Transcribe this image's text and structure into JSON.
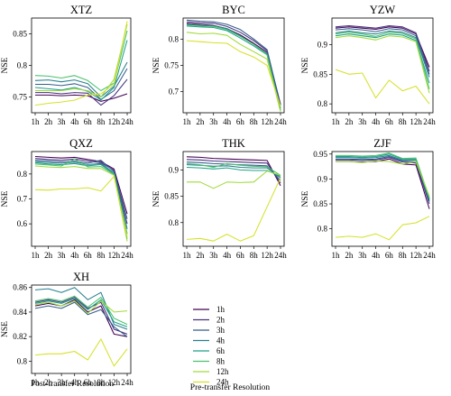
{
  "figure": {
    "xlabel": "Post-transfer Resolution",
    "ylabel": "NSE",
    "legend_title": "Pre-transfer Resolution"
  },
  "colors": {
    "1h": "#440154",
    "2h": "#46327e",
    "3h": "#365c8d",
    "4h": "#277f8e",
    "6h": "#1fa187",
    "8h": "#4ac16d",
    "12h": "#a0da39",
    "24h": "#d5e12a"
  },
  "chart_data": [
    {
      "type": "line",
      "title": "XTZ",
      "categories": [
        "1h",
        "2h",
        "3h",
        "4h",
        "6h",
        "8h",
        "12h",
        "24h"
      ],
      "ylim": [
        0.725,
        0.875
      ],
      "yticks": [
        0.75,
        0.8,
        0.85
      ],
      "series": [
        {
          "name": "1h",
          "values": [
            0.753,
            0.753,
            0.752,
            0.753,
            0.752,
            0.743,
            0.748,
            0.755
          ]
        },
        {
          "name": "2h",
          "values": [
            0.757,
            0.757,
            0.755,
            0.757,
            0.756,
            0.737,
            0.752,
            0.778
          ]
        },
        {
          "name": "3h",
          "values": [
            0.77,
            0.77,
            0.768,
            0.771,
            0.765,
            0.746,
            0.76,
            0.795
          ]
        },
        {
          "name": "4h",
          "values": [
            0.776,
            0.777,
            0.774,
            0.777,
            0.771,
            0.75,
            0.767,
            0.805
          ]
        },
        {
          "name": "6h",
          "values": [
            0.765,
            0.763,
            0.761,
            0.765,
            0.759,
            0.745,
            0.765,
            0.84
          ]
        },
        {
          "name": "8h",
          "values": [
            0.784,
            0.783,
            0.78,
            0.784,
            0.776,
            0.76,
            0.772,
            0.855
          ]
        },
        {
          "name": "12h",
          "values": [
            0.76,
            0.76,
            0.76,
            0.763,
            0.76,
            0.75,
            0.778,
            0.865
          ]
        },
        {
          "name": "24h",
          "values": [
            0.737,
            0.74,
            0.742,
            0.745,
            0.753,
            0.755,
            0.77,
            0.87
          ]
        }
      ]
    },
    {
      "type": "line",
      "title": "BYC",
      "categories": [
        "1h",
        "2h",
        "3h",
        "4h",
        "6h",
        "8h",
        "12h",
        "24h"
      ],
      "ylim": [
        0.66,
        0.84
      ],
      "yticks": [
        0.7,
        0.75,
        0.8
      ],
      "series": [
        {
          "name": "1h",
          "values": [
            0.83,
            0.828,
            0.826,
            0.82,
            0.808,
            0.792,
            0.775,
            0.676
          ]
        },
        {
          "name": "2h",
          "values": [
            0.833,
            0.831,
            0.83,
            0.824,
            0.813,
            0.797,
            0.778,
            0.676
          ]
        },
        {
          "name": "3h",
          "values": [
            0.836,
            0.834,
            0.833,
            0.828,
            0.818,
            0.8,
            0.78,
            0.673
          ]
        },
        {
          "name": "4h",
          "values": [
            0.828,
            0.826,
            0.825,
            0.82,
            0.806,
            0.79,
            0.772,
            0.668
          ]
        },
        {
          "name": "6h",
          "values": [
            0.825,
            0.823,
            0.822,
            0.816,
            0.802,
            0.787,
            0.77,
            0.665
          ]
        },
        {
          "name": "8h",
          "values": [
            0.827,
            0.825,
            0.824,
            0.818,
            0.805,
            0.79,
            0.77,
            0.664
          ]
        },
        {
          "name": "12h",
          "values": [
            0.813,
            0.81,
            0.811,
            0.807,
            0.79,
            0.776,
            0.762,
            0.662
          ]
        },
        {
          "name": "24h",
          "values": [
            0.797,
            0.795,
            0.793,
            0.792,
            0.776,
            0.766,
            0.75,
            0.672
          ]
        }
      ]
    },
    {
      "type": "line",
      "title": "YZW",
      "categories": [
        "1h",
        "2h",
        "3h",
        "4h",
        "6h",
        "8h",
        "12h",
        "24h"
      ],
      "ylim": [
        0.785,
        0.945
      ],
      "yticks": [
        0.8,
        0.85,
        0.9
      ],
      "series": [
        {
          "name": "1h",
          "values": [
            0.928,
            0.93,
            0.928,
            0.926,
            0.93,
            0.928,
            0.918,
            0.862
          ]
        },
        {
          "name": "2h",
          "values": [
            0.93,
            0.932,
            0.93,
            0.928,
            0.932,
            0.93,
            0.92,
            0.855
          ]
        },
        {
          "name": "3h",
          "values": [
            0.925,
            0.927,
            0.925,
            0.922,
            0.927,
            0.925,
            0.915,
            0.85
          ]
        },
        {
          "name": "4h",
          "values": [
            0.92,
            0.923,
            0.92,
            0.918,
            0.923,
            0.921,
            0.912,
            0.845
          ]
        },
        {
          "name": "6h",
          "values": [
            0.915,
            0.918,
            0.915,
            0.912,
            0.918,
            0.916,
            0.907,
            0.835
          ]
        },
        {
          "name": "8h",
          "values": [
            0.918,
            0.921,
            0.918,
            0.914,
            0.921,
            0.919,
            0.91,
            0.825
          ]
        },
        {
          "name": "12h",
          "values": [
            0.912,
            0.915,
            0.912,
            0.908,
            0.915,
            0.913,
            0.905,
            0.818
          ]
        },
        {
          "name": "24h",
          "values": [
            0.858,
            0.85,
            0.852,
            0.81,
            0.84,
            0.822,
            0.83,
            0.8
          ]
        }
      ]
    },
    {
      "type": "line",
      "title": "QXZ",
      "categories": [
        "1h",
        "2h",
        "3h",
        "4h",
        "6h",
        "8h",
        "12h",
        "24h"
      ],
      "ylim": [
        0.51,
        0.89
      ],
      "yticks": [
        0.6,
        0.7,
        0.8
      ],
      "series": [
        {
          "name": "1h",
          "values": [
            0.87,
            0.867,
            0.864,
            0.867,
            0.858,
            0.85,
            0.82,
            0.64
          ]
        },
        {
          "name": "2h",
          "values": [
            0.862,
            0.858,
            0.855,
            0.86,
            0.852,
            0.845,
            0.815,
            0.6
          ]
        },
        {
          "name": "3h",
          "values": [
            0.855,
            0.852,
            0.848,
            0.852,
            0.844,
            0.855,
            0.81,
            0.62
          ]
        },
        {
          "name": "4h",
          "values": [
            0.85,
            0.846,
            0.843,
            0.847,
            0.838,
            0.842,
            0.805,
            0.58
          ]
        },
        {
          "name": "6h",
          "values": [
            0.845,
            0.84,
            0.837,
            0.842,
            0.833,
            0.838,
            0.8,
            0.56
          ]
        },
        {
          "name": "8h",
          "values": [
            0.84,
            0.836,
            0.832,
            0.86,
            0.828,
            0.83,
            0.798,
            0.54
          ]
        },
        {
          "name": "12h",
          "values": [
            0.832,
            0.828,
            0.826,
            0.83,
            0.822,
            0.822,
            0.795,
            0.53
          ]
        },
        {
          "name": "24h",
          "values": [
            0.737,
            0.735,
            0.74,
            0.74,
            0.745,
            0.732,
            0.79,
            0.55
          ]
        }
      ]
    },
    {
      "type": "line",
      "title": "THK",
      "categories": [
        "1h",
        "2h",
        "3h",
        "4h",
        "6h",
        "8h",
        "12h",
        "24h"
      ],
      "ylim": [
        0.755,
        0.935
      ],
      "yticks": [
        0.8,
        0.85,
        0.9
      ],
      "series": [
        {
          "name": "1h",
          "values": [
            0.925,
            0.924,
            0.922,
            0.921,
            0.92,
            0.919,
            0.918,
            0.87
          ]
        },
        {
          "name": "2h",
          "values": [
            0.92,
            0.919,
            0.917,
            0.916,
            0.915,
            0.914,
            0.913,
            0.875
          ]
        },
        {
          "name": "3h",
          "values": [
            0.915,
            0.914,
            0.912,
            0.911,
            0.91,
            0.909,
            0.908,
            0.88
          ]
        },
        {
          "name": "4h",
          "values": [
            0.91,
            0.909,
            0.907,
            0.908,
            0.905,
            0.904,
            0.904,
            0.885
          ]
        },
        {
          "name": "6h",
          "values": [
            0.905,
            0.904,
            0.902,
            0.904,
            0.9,
            0.899,
            0.899,
            0.888
          ]
        },
        {
          "name": "8h",
          "values": [
            0.912,
            0.91,
            0.905,
            0.912,
            0.909,
            0.907,
            0.906,
            0.89
          ]
        },
        {
          "name": "12h",
          "values": [
            0.877,
            0.877,
            0.865,
            0.877,
            0.876,
            0.877,
            0.898,
            0.89
          ]
        },
        {
          "name": "24h",
          "values": [
            0.768,
            0.77,
            0.765,
            0.778,
            0.765,
            0.775,
            0.83,
            0.885
          ]
        }
      ]
    },
    {
      "type": "line",
      "title": "ZJF",
      "categories": [
        "1h",
        "2h",
        "3h",
        "4h",
        "6h",
        "8h",
        "12h",
        "24h"
      ],
      "ylim": [
        0.765,
        0.955
      ],
      "yticks": [
        0.8,
        0.85,
        0.9,
        0.95
      ],
      "series": [
        {
          "name": "1h",
          "values": [
            0.935,
            0.935,
            0.934,
            0.935,
            0.94,
            0.93,
            0.928,
            0.84
          ]
        },
        {
          "name": "2h",
          "values": [
            0.938,
            0.938,
            0.937,
            0.938,
            0.943,
            0.934,
            0.932,
            0.85
          ]
        },
        {
          "name": "3h",
          "values": [
            0.94,
            0.94,
            0.939,
            0.94,
            0.945,
            0.936,
            0.935,
            0.855
          ]
        },
        {
          "name": "4h",
          "values": [
            0.943,
            0.943,
            0.942,
            0.943,
            0.947,
            0.938,
            0.938,
            0.858
          ]
        },
        {
          "name": "6h",
          "values": [
            0.945,
            0.945,
            0.944,
            0.945,
            0.95,
            0.94,
            0.94,
            0.86
          ]
        },
        {
          "name": "8h",
          "values": [
            0.947,
            0.947,
            0.946,
            0.947,
            0.952,
            0.941,
            0.942,
            0.862
          ]
        },
        {
          "name": "12h",
          "values": [
            0.935,
            0.935,
            0.933,
            0.936,
            0.935,
            0.93,
            0.935,
            0.865
          ]
        },
        {
          "name": "24h",
          "values": [
            0.783,
            0.785,
            0.783,
            0.79,
            0.778,
            0.808,
            0.812,
            0.825
          ]
        }
      ]
    },
    {
      "type": "line",
      "title": "XH",
      "categories": [
        "1h",
        "2h",
        "3h",
        "4h",
        "6h",
        "8h",
        "12h",
        "24h"
      ],
      "ylim": [
        0.79,
        0.862
      ],
      "yticks": [
        0.8,
        0.82,
        0.84,
        0.86
      ],
      "series": [
        {
          "name": "1h",
          "values": [
            0.845,
            0.847,
            0.845,
            0.85,
            0.84,
            0.845,
            0.822,
            0.82
          ]
        },
        {
          "name": "2h",
          "values": [
            0.848,
            0.85,
            0.848,
            0.852,
            0.843,
            0.848,
            0.826,
            0.822
          ]
        },
        {
          "name": "3h",
          "values": [
            0.843,
            0.845,
            0.843,
            0.848,
            0.838,
            0.842,
            0.828,
            0.82
          ]
        },
        {
          "name": "4h",
          "values": [
            0.858,
            0.859,
            0.856,
            0.86,
            0.85,
            0.856,
            0.83,
            0.826
          ]
        },
        {
          "name": "6h",
          "values": [
            0.847,
            0.849,
            0.847,
            0.851,
            0.842,
            0.85,
            0.832,
            0.828
          ]
        },
        {
          "name": "8h",
          "values": [
            0.849,
            0.851,
            0.849,
            0.853,
            0.844,
            0.852,
            0.835,
            0.83
          ]
        },
        {
          "name": "12h",
          "values": [
            0.846,
            0.848,
            0.845,
            0.849,
            0.839,
            0.849,
            0.84,
            0.841
          ]
        },
        {
          "name": "24h",
          "values": [
            0.805,
            0.806,
            0.806,
            0.808,
            0.801,
            0.818,
            0.796,
            0.81
          ]
        }
      ]
    }
  ]
}
